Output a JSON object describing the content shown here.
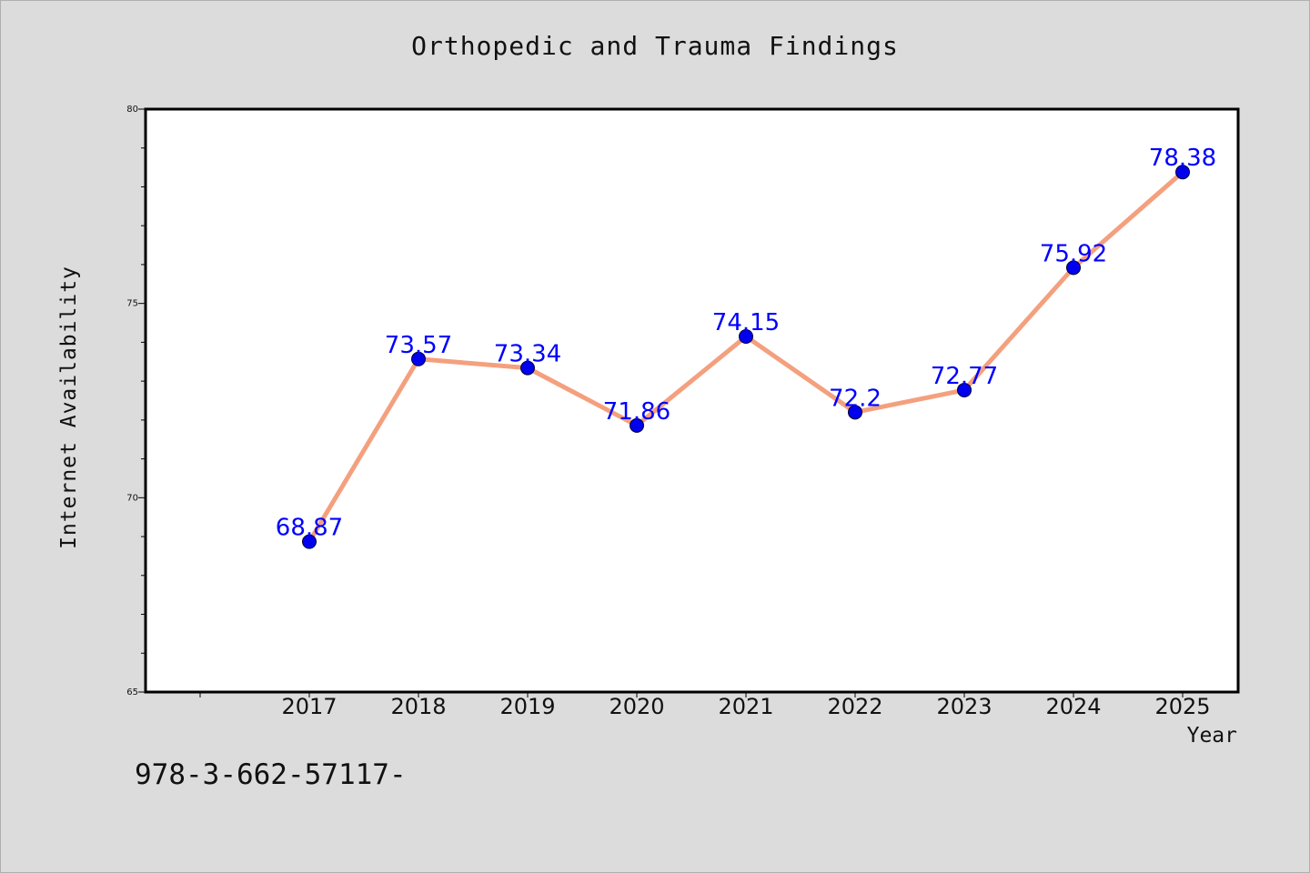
{
  "chart_data": {
    "type": "line",
    "title": "Orthopedic and Trauma Findings",
    "xlabel": "Year",
    "ylabel": "Internet Availability",
    "categories": [
      "2017",
      "2018",
      "2019",
      "2020",
      "2021",
      "2022",
      "2023",
      "2024",
      "2025"
    ],
    "values": [
      68.87,
      73.57,
      73.34,
      71.86,
      74.15,
      72.2,
      72.77,
      75.92,
      78.38
    ],
    "data_labels": [
      "68.87",
      "73.57",
      "73.34",
      "71.86",
      "74.15",
      "72.2",
      "72.77",
      "75.92",
      "78.38"
    ],
    "ylim": [
      65,
      80
    ],
    "yticks": [
      65,
      70,
      75,
      80
    ],
    "ytick_labels": [
      "65",
      "70",
      "75",
      "80"
    ],
    "grid": false,
    "line_color": "#f4a07e",
    "marker_color": "#0000ee",
    "label_color": "#0000ff"
  },
  "footnote": "978-3-662-57117-"
}
